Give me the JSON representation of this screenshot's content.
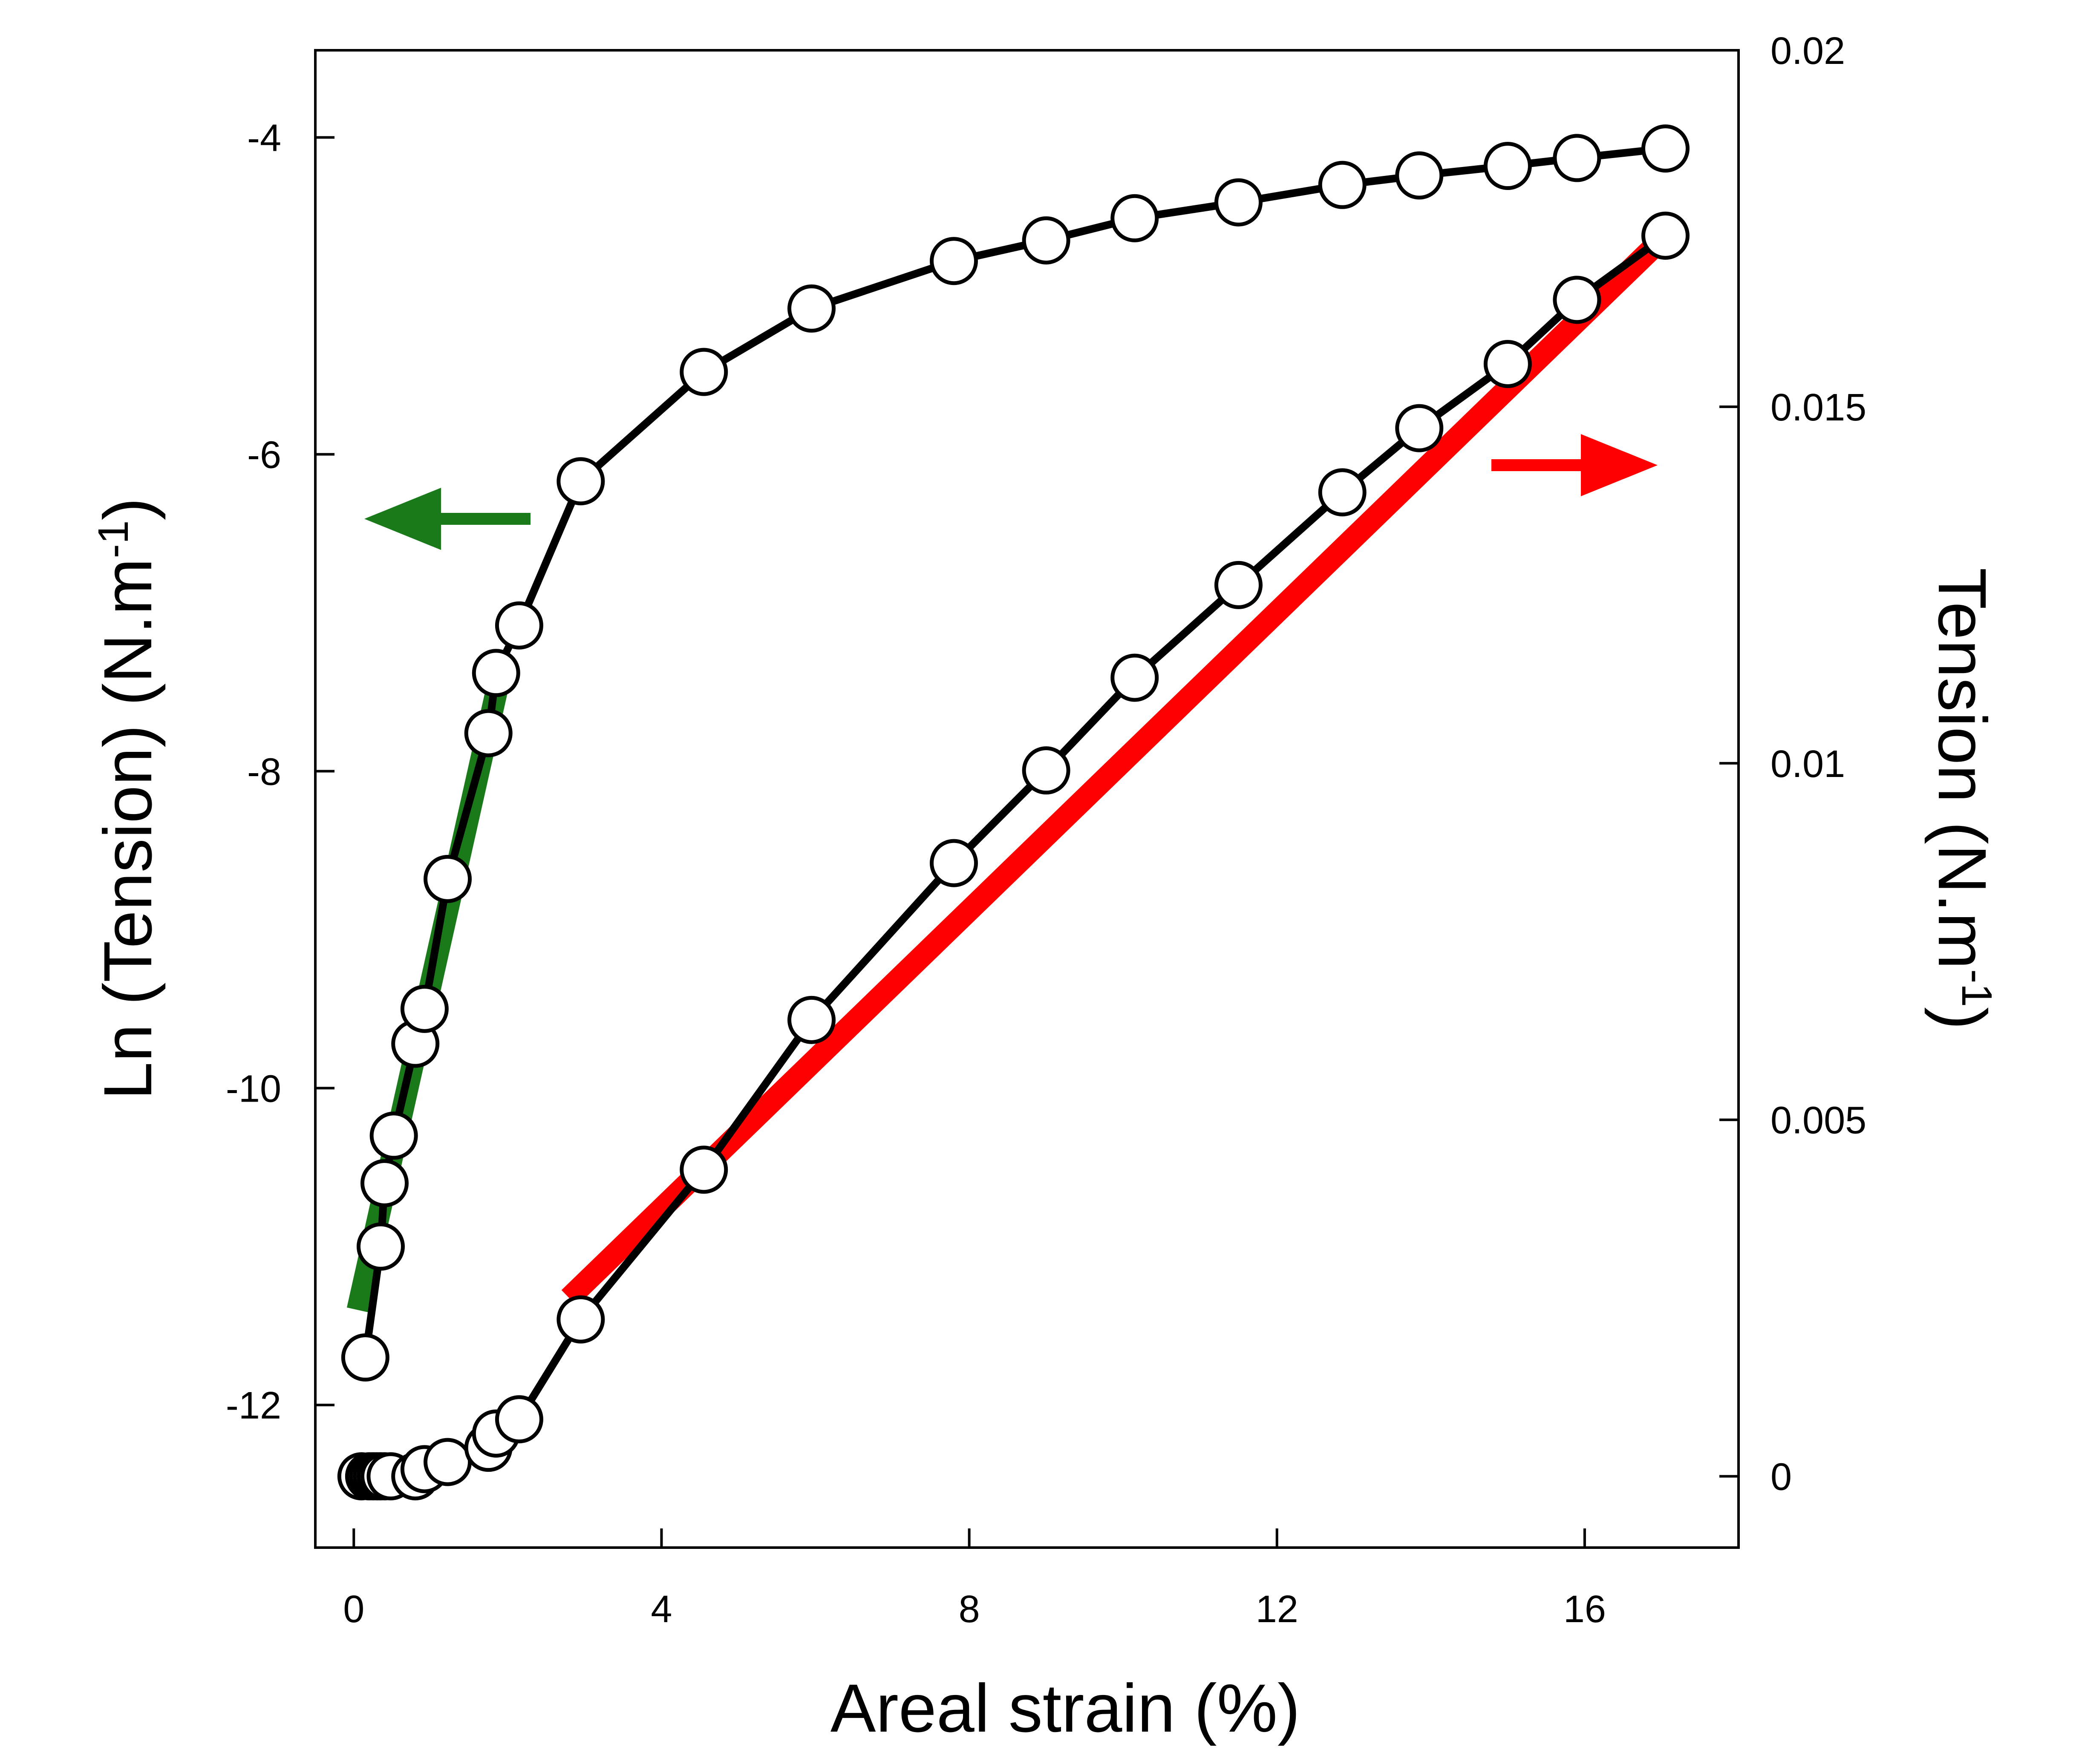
{
  "chart_data": {
    "type": "line",
    "title": "",
    "xlabel": "Areal strain (%)",
    "ylabel_left": "Ln (Tension) (N.m",
    "ylabel_left_exp": "-1",
    "ylabel_left_close": ")",
    "ylabel_right": "Tension (N.m",
    "ylabel_right_exp": "-1",
    "ylabel_right_close": ")",
    "xlim": [
      -0.5,
      18
    ],
    "ylim_left": [
      -12.9,
      -3.45
    ],
    "ylim_right": [
      -0.001,
      0.02
    ],
    "x_ticks": [
      0,
      4,
      8,
      12,
      16
    ],
    "x_tick_labels": [
      "0",
      "4",
      "8",
      "12",
      "16"
    ],
    "y_left_ticks": [
      -4,
      -6,
      -8,
      -10,
      -12
    ],
    "y_left_tick_labels": [
      "-4",
      "-6",
      "-8",
      "-10",
      "-12"
    ],
    "y_right_ticks": [
      0.02,
      0.015,
      0.01,
      0.005,
      0
    ],
    "y_right_tick_labels": [
      "0.02",
      "0.015",
      "0.01",
      "0.005",
      "0"
    ],
    "series": [
      {
        "name": "Ln (Tension)",
        "axis": "left",
        "color": "#000000",
        "x": [
          0.15,
          0.35,
          0.4,
          0.52,
          0.8,
          0.92,
          1.22,
          1.75,
          1.85,
          2.15,
          2.95,
          4.55,
          5.95,
          7.8,
          9.0,
          10.15,
          11.5,
          12.85,
          13.85,
          15.0,
          15.9,
          17.05
        ],
        "y": [
          -11.7,
          -11.0,
          -10.6,
          -10.3,
          -9.72,
          -9.5,
          -8.68,
          -7.76,
          -7.38,
          -7.08,
          -6.17,
          -5.48,
          -5.08,
          -4.78,
          -4.65,
          -4.51,
          -4.41,
          -4.3,
          -4.24,
          -4.18,
          -4.13,
          -4.07
        ]
      },
      {
        "name": "Tension",
        "axis": "right",
        "color": "#000000",
        "x": [
          0.1,
          0.2,
          0.25,
          0.3,
          0.35,
          0.4,
          0.48,
          0.8,
          0.92,
          1.22,
          1.75,
          1.85,
          2.15,
          2.95,
          4.55,
          5.95,
          7.8,
          9.0,
          10.15,
          11.5,
          12.85,
          13.85,
          15.0,
          15.9,
          17.05
        ],
        "y": [
          0.0,
          0.0,
          0.0,
          0.0,
          0.0,
          0.0,
          0.0,
          0.0,
          0.0001,
          0.0002,
          0.0004,
          0.0006,
          0.0008,
          0.0022,
          0.0043,
          0.0064,
          0.0086,
          0.0099,
          0.0112,
          0.0125,
          0.0138,
          0.0147,
          0.0156,
          0.0165,
          0.0174
        ]
      }
    ],
    "fits": [
      {
        "name": "exponential fit",
        "axis": "left",
        "color": "#1a7a1a",
        "x": [
          0.05,
          1.9
        ],
        "y": [
          -11.4,
          -7.4
        ]
      },
      {
        "name": "linear fit",
        "axis": "right",
        "color": "#ff0000",
        "x": [
          2.8,
          17.05
        ],
        "y": [
          0.0025,
          0.0174
        ]
      }
    ],
    "annotations": [
      {
        "type": "arrow",
        "direction": "left",
        "color": "#1a7a1a",
        "meaning": "left axis"
      },
      {
        "type": "arrow",
        "direction": "right",
        "color": "#ff0000",
        "meaning": "right axis"
      }
    ],
    "grid": false,
    "legend": "none"
  }
}
